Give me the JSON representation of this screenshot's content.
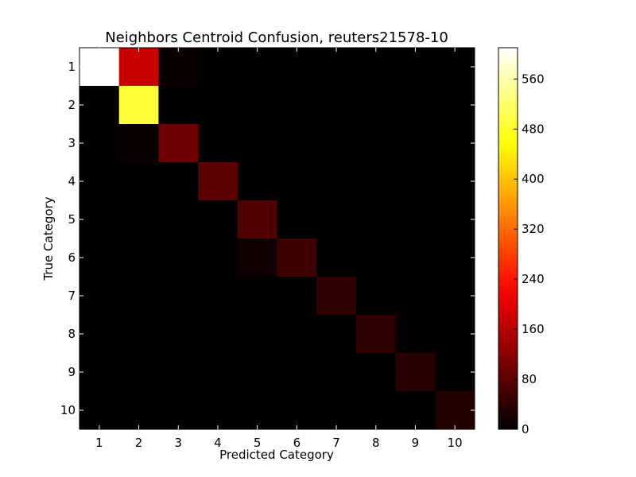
{
  "chart_data": {
    "type": "heatmap",
    "title": "Neighbors Centroid Confusion, reuters21578-10",
    "xlabel": "Predicted Category",
    "ylabel": "True Category",
    "x_categories": [
      "1",
      "2",
      "3",
      "4",
      "5",
      "6",
      "7",
      "8",
      "9",
      "10"
    ],
    "y_categories": [
      "1",
      "2",
      "3",
      "4",
      "5",
      "6",
      "7",
      "8",
      "9",
      "10"
    ],
    "colormap": "hot",
    "vmin": 0,
    "vmax": 610,
    "colorbar_ticks": [
      0,
      80,
      160,
      240,
      320,
      400,
      480,
      560
    ],
    "matrix": [
      [
        610,
        175,
        10,
        2,
        1,
        1,
        1,
        1,
        1,
        1
      ],
      [
        3,
        490,
        2,
        1,
        1,
        1,
        1,
        1,
        1,
        1
      ],
      [
        2,
        8,
        95,
        1,
        1,
        1,
        1,
        1,
        1,
        1
      ],
      [
        1,
        1,
        1,
        80,
        1,
        1,
        1,
        1,
        1,
        1
      ],
      [
        1,
        1,
        1,
        2,
        70,
        1,
        1,
        1,
        1,
        1
      ],
      [
        2,
        3,
        2,
        2,
        12,
        55,
        1,
        1,
        1,
        1
      ],
      [
        1,
        1,
        1,
        1,
        1,
        2,
        40,
        1,
        1,
        1
      ],
      [
        1,
        1,
        1,
        1,
        1,
        1,
        1,
        40,
        1,
        1
      ],
      [
        1,
        1,
        1,
        1,
        1,
        1,
        1,
        1,
        35,
        1
      ],
      [
        1,
        1,
        1,
        1,
        1,
        1,
        1,
        1,
        1,
        30
      ]
    ]
  }
}
